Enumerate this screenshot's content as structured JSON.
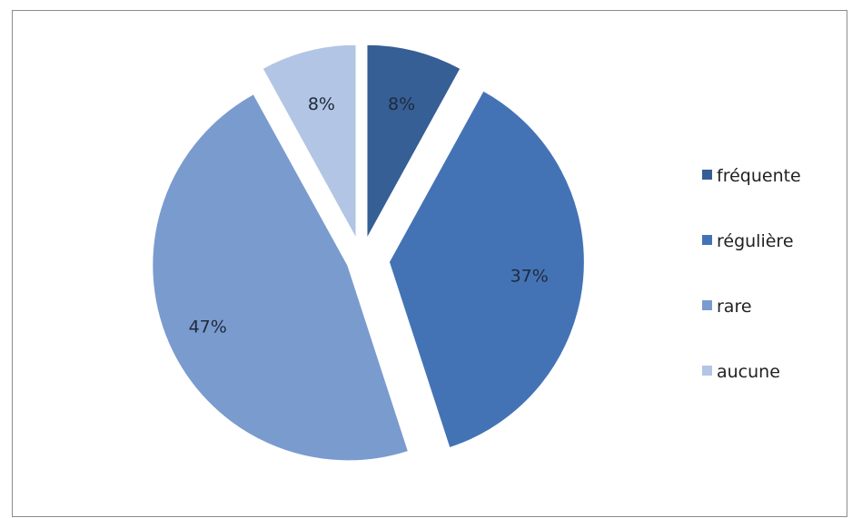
{
  "chart_data": {
    "type": "pie",
    "exploded": true,
    "legend_position": "right",
    "slices": [
      {
        "name": "fréquente",
        "value": 8,
        "label": "8%",
        "color": "#355f95"
      },
      {
        "name": "régulière",
        "value": 37,
        "label": "37%",
        "color": "#4473b5"
      },
      {
        "name": "rare",
        "value": 47,
        "label": "47%",
        "color": "#7a9bce"
      },
      {
        "name": "aucune",
        "value": 8,
        "label": "8%",
        "color": "#b2c5e4"
      }
    ]
  }
}
